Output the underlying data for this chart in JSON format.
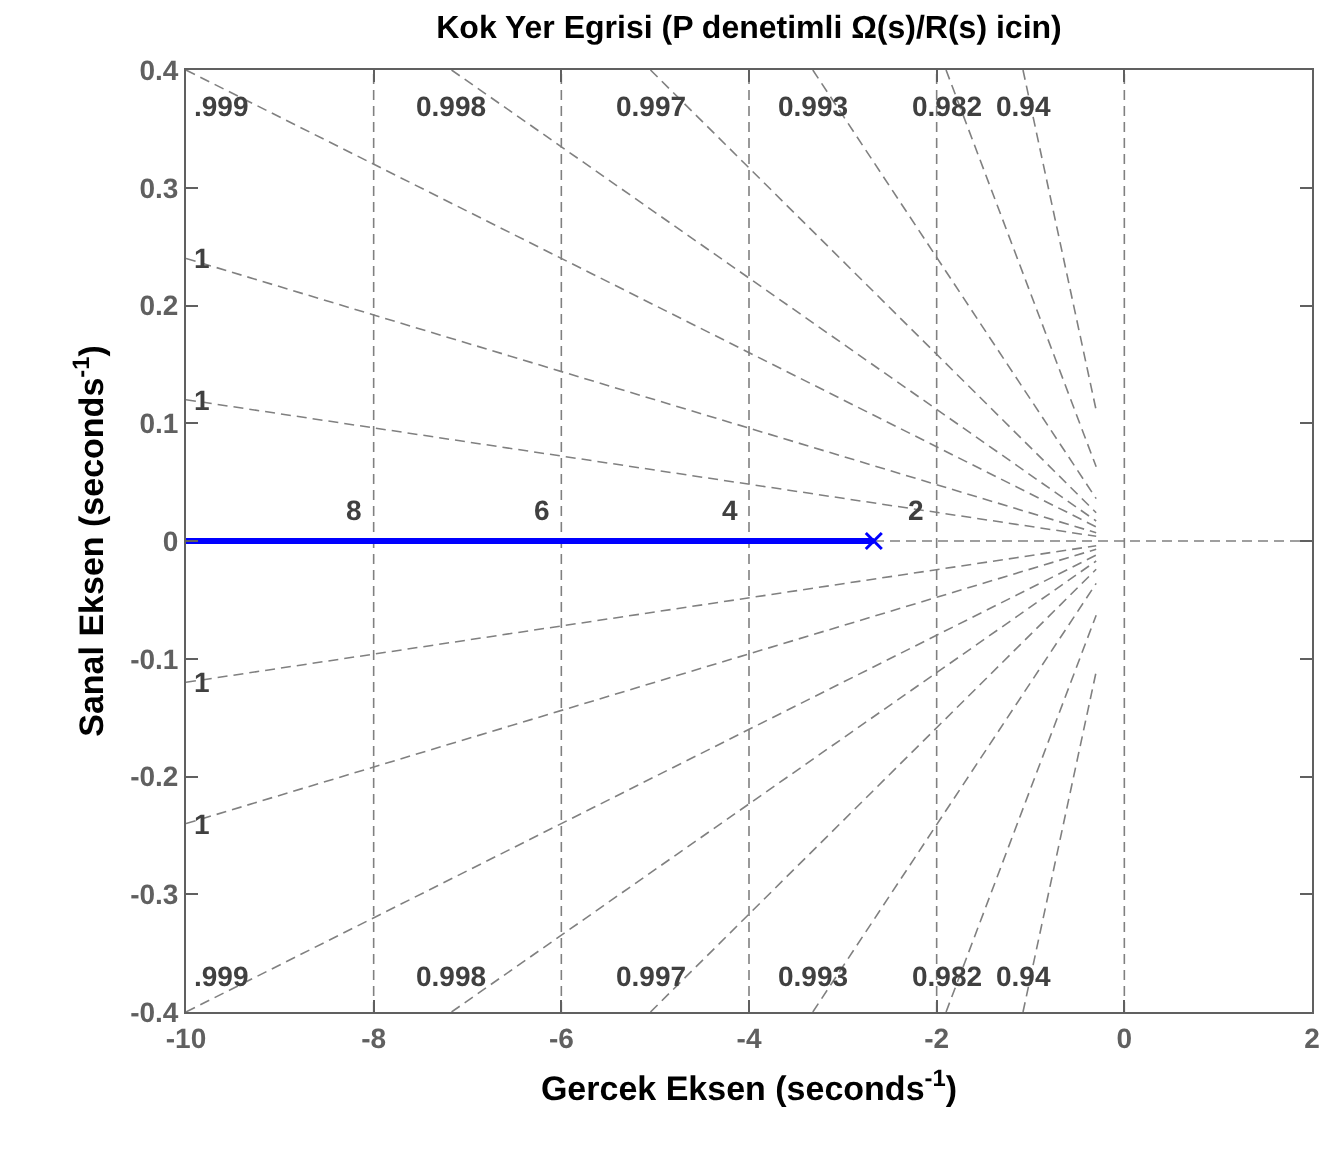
{
  "chart_data": {
    "type": "line",
    "title": "Kok Yer Egrisi (P denetimli Ω(s)/R(s) icin)",
    "xlabel": "Gercek Eksen (seconds$^{-1}$)",
    "ylabel": "Sanal Eksen (seconds$^{-1}$)",
    "xlim": [
      -10,
      2
    ],
    "xticks": [
      -10,
      -8,
      -6,
      -4,
      -2,
      0,
      2
    ],
    "ylim": [
      -0.4,
      0.4
    ],
    "yticks": [
      -0.4,
      -0.3,
      -0.2,
      -0.1,
      0,
      0.1,
      0.2,
      0.3,
      0.4
    ],
    "grid": false,
    "legend": false,
    "series": [
      {
        "name": "1",
        "color": "#808080",
        "line_style": "dashed",
        "x": [
          -10,
          -0.3
        ],
        "values": [
          0.12,
          0.004
        ]
      },
      {
        "name": "1",
        "color": "#808080",
        "line_style": "dashed",
        "x": [
          -10,
          -0.3
        ],
        "values": [
          0.24,
          0.007
        ]
      },
      {
        "name": ".999",
        "color": "#808080",
        "line_style": "dashed",
        "x": [
          -10,
          -0.3
        ],
        "values": [
          0.4,
          0.012
        ]
      },
      {
        "name": "0.998",
        "color": "#808080",
        "line_style": "dashed",
        "x": [
          -7.17,
          -0.3
        ],
        "values": [
          0.4,
          0.017
        ]
      },
      {
        "name": "0.997",
        "color": "#808080",
        "line_style": "dashed",
        "x": [
          -5.05,
          -0.3
        ],
        "values": [
          0.4,
          0.024
        ]
      },
      {
        "name": "0.993",
        "color": "#808080",
        "line_style": "dashed",
        "x": [
          -3.32,
          -0.3
        ],
        "values": [
          0.4,
          0.036
        ]
      },
      {
        "name": "0.982",
        "color": "#808080",
        "line_style": "dashed",
        "x": [
          -1.9,
          -0.3
        ],
        "values": [
          0.4,
          0.063
        ]
      },
      {
        "name": "0.94",
        "color": "#808080",
        "line_style": "dashed",
        "x": [
          -1.08,
          -0.3
        ],
        "values": [
          0.4,
          0.111
        ]
      },
      {
        "name": "1",
        "color": "#808080",
        "line_style": "dashed",
        "x": [
          -10,
          -0.3
        ],
        "values": [
          -0.12,
          -0.004
        ]
      },
      {
        "name": "1",
        "color": "#808080",
        "line_style": "dashed",
        "x": [
          -10,
          -0.3
        ],
        "values": [
          -0.24,
          -0.007
        ]
      },
      {
        "name": ".999",
        "color": "#808080",
        "line_style": "dashed",
        "x": [
          -10,
          -0.3
        ],
        "values": [
          -0.4,
          -0.012
        ]
      },
      {
        "name": "0.998",
        "color": "#808080",
        "line_style": "dashed",
        "x": [
          -7.17,
          -0.3
        ],
        "values": [
          -0.4,
          -0.017
        ]
      },
      {
        "name": "0.997",
        "color": "#808080",
        "line_style": "dashed",
        "x": [
          -5.05,
          -0.3
        ],
        "values": [
          -0.4,
          -0.024
        ]
      },
      {
        "name": "0.993",
        "color": "#808080",
        "line_style": "dashed",
        "x": [
          -3.32,
          -0.3
        ],
        "values": [
          -0.4,
          -0.036
        ]
      },
      {
        "name": "0.982",
        "color": "#808080",
        "line_style": "dashed",
        "x": [
          -1.9,
          -0.3
        ],
        "values": [
          -0.4,
          -0.063
        ]
      },
      {
        "name": "0.94",
        "color": "#808080",
        "line_style": "dashed",
        "x": [
          -1.08,
          -0.3
        ],
        "values": [
          -0.4,
          -0.111
        ]
      },
      {
        "type": "line",
        "color": "#0000ff",
        "line_style": "solid",
        "x": [
          -2.67,
          -10
        ],
        "values": [
          0,
          0
        ]
      },
      {
        "type": "scatter",
        "color": "#0000ff",
        "marker": "cross",
        "x": [
          -2.67
        ],
        "values": [
          0
        ]
      }
    ],
    "ref_lines": [
      {
        "axis": "x",
        "value": -8,
        "color": "#808080",
        "line_style": "dashed"
      },
      {
        "axis": "x",
        "value": -6,
        "color": "#808080",
        "line_style": "dashed"
      },
      {
        "axis": "x",
        "value": -4,
        "color": "#808080",
        "line_style": "dashed"
      },
      {
        "axis": "x",
        "value": -2,
        "color": "#808080",
        "line_style": "dashed"
      },
      {
        "axis": "x",
        "value": 0,
        "color": "#808080",
        "line_style": "dashed"
      },
      {
        "axis": "y",
        "value": 0,
        "color": "#808080",
        "line_style": "dashed"
      }
    ],
    "annotations": [
      {
        "text": "8",
        "x": -8,
        "y": 0
      },
      {
        "text": "6",
        "x": -6,
        "y": 0
      },
      {
        "text": "4",
        "x": -4,
        "y": 0
      },
      {
        "text": "2",
        "x": -2,
        "y": 0
      }
    ]
  }
}
